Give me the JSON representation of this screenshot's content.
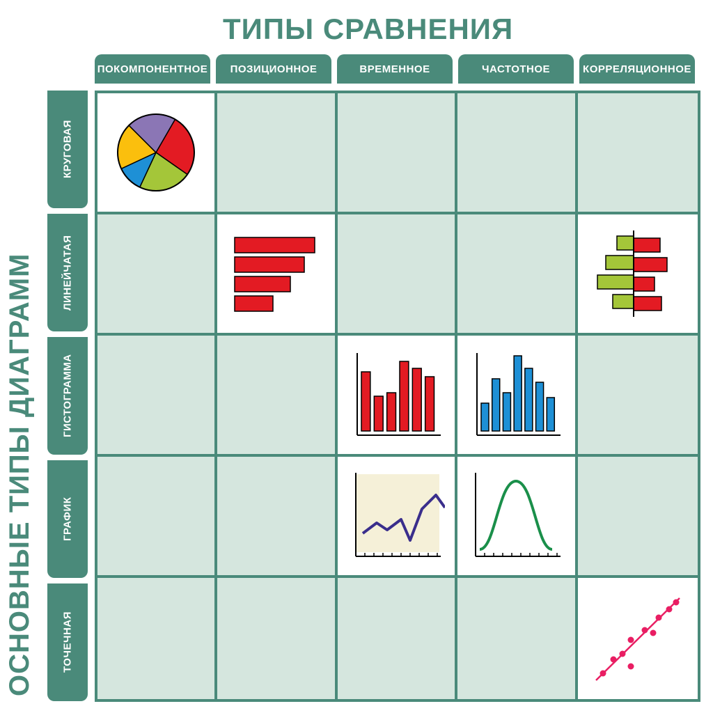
{
  "titles": {
    "top": "ТИПЫ СРАВНЕНИЯ",
    "side": "ОСНОВНЫЕ ТИПЫ ДИАГРАММ"
  },
  "columns": [
    "ПОКОМПОНЕНТНОЕ",
    "ПОЗИЦИОННОЕ",
    "ВРЕМЕННОЕ",
    "ЧАСТОТНОЕ",
    "КОРРЕЛЯЦИОННОЕ"
  ],
  "rows": [
    "КРУГОВАЯ",
    "ЛИНЕЙЧАТАЯ",
    "ГИСТОГРАММА",
    "ГРАФИК",
    "ТОЧЕЧНАЯ"
  ],
  "colors": {
    "teal": "#4a8a7a",
    "cell_bg": "#d5e6de",
    "white": "#ffffff",
    "red": "#e31b23",
    "green": "#a4c639",
    "blue": "#1e90d6",
    "yellow": "#fbbf0d",
    "purple": "#8b76b5",
    "deep_blue": "#3a2e8c",
    "dark_green": "#1a8f4a",
    "pink": "#e91e63",
    "axis": "#000000",
    "cream": "#f5f0d8"
  },
  "matrix": [
    [
      "pie",
      null,
      null,
      null,
      null
    ],
    [
      null,
      "hbar",
      null,
      null,
      "diverge"
    ],
    [
      null,
      null,
      "vbar_red",
      "vbar_blue",
      null
    ],
    [
      null,
      null,
      "line",
      "bell",
      null
    ],
    [
      null,
      null,
      null,
      null,
      "scatter"
    ]
  ],
  "charts": {
    "pie": {
      "type": "pie",
      "stroke": "#000000",
      "slices": [
        {
          "color": "#e31b23",
          "start": -60,
          "sweep": 95
        },
        {
          "color": "#a4c639",
          "start": 35,
          "sweep": 80
        },
        {
          "color": "#1e90d6",
          "start": 115,
          "sweep": 40
        },
        {
          "color": "#fbbf0d",
          "start": 155,
          "sweep": 70
        },
        {
          "color": "#8b76b5",
          "start": 225,
          "sweep": 75
        }
      ]
    },
    "hbar": {
      "type": "hbar",
      "color": "#e31b23",
      "stroke": "#000000",
      "bars": [
        115,
        100,
        80,
        55
      ]
    },
    "diverge": {
      "type": "diverging_hbar",
      "stroke": "#000000",
      "left_color": "#a4c639",
      "right_color": "#e31b23",
      "pairs": [
        {
          "l": 24,
          "r": 38
        },
        {
          "l": 40,
          "r": 48
        },
        {
          "l": 52,
          "r": 30
        },
        {
          "l": 30,
          "r": 40
        }
      ]
    },
    "vbar_red": {
      "type": "vbar",
      "color": "#e31b23",
      "stroke": "#000000",
      "axis_color": "#000000",
      "bars": [
        85,
        50,
        55,
        100,
        90,
        78
      ]
    },
    "vbar_blue": {
      "type": "vbar",
      "color": "#1e90d6",
      "stroke": "#000000",
      "axis_color": "#000000",
      "bars": [
        40,
        75,
        55,
        108,
        90,
        70,
        48
      ]
    },
    "line": {
      "type": "line",
      "bg": "#f5f0d8",
      "stroke": "#3a2e8c",
      "stroke_width": 4,
      "axis_color": "#000000",
      "points": [
        [
          10,
          85
        ],
        [
          30,
          70
        ],
        [
          45,
          80
        ],
        [
          65,
          65
        ],
        [
          78,
          95
        ],
        [
          95,
          50
        ],
        [
          115,
          30
        ],
        [
          128,
          48
        ]
      ]
    },
    "bell": {
      "type": "bell",
      "stroke": "#1a8f4a",
      "stroke_width": 4,
      "axis_color": "#000000"
    },
    "scatter": {
      "type": "scatter",
      "point_color": "#e91e63",
      "line_color": "#e91e63",
      "points": [
        [
          20,
          120
        ],
        [
          35,
          100
        ],
        [
          48,
          92
        ],
        [
          60,
          110
        ],
        [
          60,
          72
        ],
        [
          80,
          58
        ],
        [
          92,
          62
        ],
        [
          100,
          40
        ],
        [
          115,
          28
        ],
        [
          125,
          18
        ]
      ],
      "line": [
        [
          10,
          130
        ],
        [
          130,
          12
        ]
      ]
    }
  }
}
